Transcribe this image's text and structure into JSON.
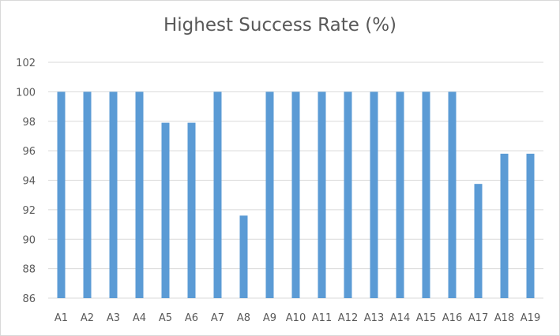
{
  "chart_data": {
    "type": "bar",
    "title": "Highest Success Rate (%)",
    "xlabel": "",
    "ylabel": "",
    "categories": [
      "A1",
      "A2",
      "A3",
      "A4",
      "A5",
      "A6",
      "A7",
      "A8",
      "A9",
      "A10",
      "A11",
      "A12",
      "A13",
      "A14",
      "A15",
      "A16",
      "A17",
      "A18",
      "A19"
    ],
    "values": [
      100,
      100,
      100,
      100,
      97.9,
      97.9,
      100,
      91.6,
      100,
      100,
      100,
      100,
      100,
      100,
      100,
      100,
      93.75,
      95.8,
      95.8
    ],
    "ylim": [
      86,
      102
    ],
    "yticks": [
      86,
      88,
      90,
      92,
      94,
      96,
      98,
      100,
      102
    ],
    "grid": true,
    "legend": "none",
    "colors": {
      "bar": "#5b9bd5",
      "grid": "#d9d9d9",
      "text": "#595959"
    }
  }
}
